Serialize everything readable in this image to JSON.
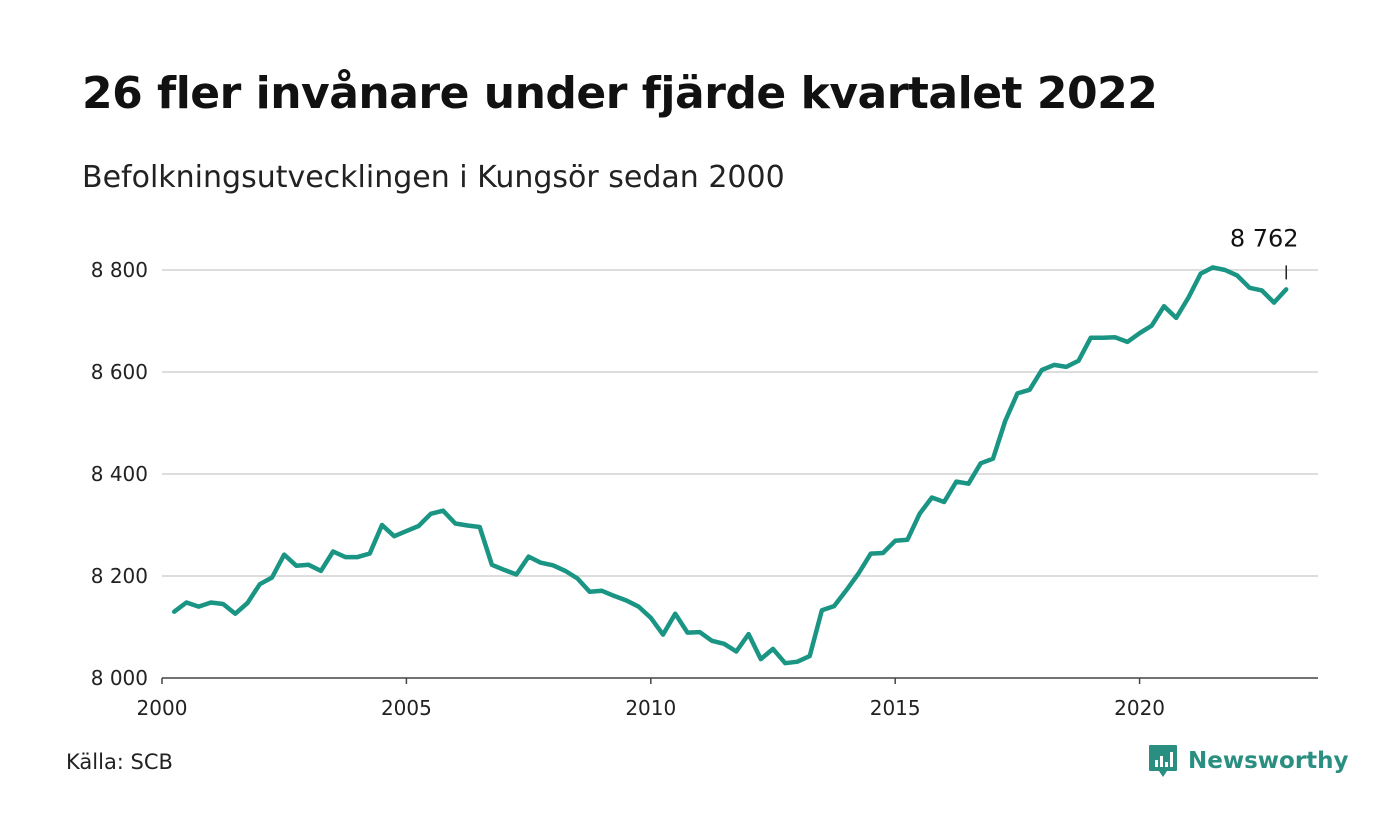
{
  "title": "26 fler invånare under fjärde kvartalet 2022",
  "subtitle": "Befolkningsutvecklingen i Kungsör sedan 2000",
  "source": "Källa: SCB",
  "brand": {
    "name": "Newsworthy",
    "icon": "newsworthy-logo-icon"
  },
  "colors": {
    "line": "#1a9584",
    "grid": "#dddddd",
    "axis": "#444444",
    "brand": "#2a8f80"
  },
  "chart_data": {
    "type": "line",
    "title": "26 fler invånare under fjärde kvartalet 2022",
    "subtitle": "Befolkningsutvecklingen i Kungsör sedan 2000",
    "xlabel": "",
    "ylabel": "",
    "xlim": [
      2000,
      2023.5
    ],
    "ylim": [
      8000,
      8800
    ],
    "x_ticks": [
      2000,
      2005,
      2010,
      2015,
      2020
    ],
    "x_tick_labels": [
      "2000",
      "2005",
      "2010",
      "2015",
      "2020"
    ],
    "y_ticks": [
      8000,
      8200,
      8400,
      8600,
      8800
    ],
    "y_tick_labels": [
      "8 000",
      "8 200",
      "8 400",
      "8 600",
      "8 800"
    ],
    "grid": true,
    "last_value_label": "8 762",
    "series": [
      {
        "x": [
          2000.25,
          2000.5,
          2000.75,
          2001.0,
          2001.25,
          2001.5,
          2001.75,
          2002.0,
          2002.25,
          2002.5,
          2002.75,
          2003.0,
          2003.25,
          2003.5,
          2003.75,
          2004.0,
          2004.25,
          2004.5,
          2004.75,
          2005.0,
          2005.25,
          2005.5,
          2005.75,
          2006.0,
          2006.25,
          2006.5,
          2006.75,
          2007.0,
          2007.25,
          2007.5,
          2007.75,
          2008.0,
          2008.25,
          2008.5,
          2008.75,
          2009.0,
          2009.25,
          2009.5,
          2009.75,
          2010.0,
          2010.25,
          2010.5,
          2010.75,
          2011.0,
          2011.25,
          2011.5,
          2011.75,
          2012.0,
          2012.25,
          2012.5,
          2012.75,
          2013.0,
          2013.25,
          2013.5,
          2013.75,
          2014.0,
          2014.25,
          2014.5,
          2014.75,
          2015.0,
          2015.25,
          2015.5,
          2015.75,
          2016.0,
          2016.25,
          2016.5,
          2016.75,
          2017.0,
          2017.25,
          2017.5,
          2017.75,
          2018.0,
          2018.25,
          2018.5,
          2018.75,
          2019.0,
          2019.25,
          2019.5,
          2019.75,
          2020.0,
          2020.25,
          2020.5,
          2020.75,
          2021.0,
          2021.25,
          2021.5,
          2021.75,
          2022.0,
          2022.25,
          2022.5,
          2022.75,
          2023.0
        ],
        "values": [
          8130,
          8148,
          8140,
          8148,
          8145,
          8126,
          8147,
          8184,
          8197,
          8242,
          8220,
          8222,
          8210,
          8248,
          8237,
          8237,
          8244,
          8300,
          8278,
          8288,
          8298,
          8322,
          8328,
          8303,
          8299,
          8296,
          8222,
          8212,
          8203,
          8238,
          8226,
          8221,
          8210,
          8195,
          8169,
          8171,
          8161,
          8152,
          8140,
          8118,
          8085,
          8126,
          8089,
          8090,
          8073,
          8067,
          8052,
          8086,
          8037,
          8057,
          8029,
          8032,
          8043,
          8133,
          8141,
          8172,
          8205,
          8244,
          8245,
          8269,
          8271,
          8322,
          8354,
          8345,
          8385,
          8381,
          8421,
          8430,
          8504,
          8558,
          8565,
          8604,
          8614,
          8610,
          8622,
          8667,
          8667,
          8668,
          8659,
          8676,
          8691,
          8729,
          8706,
          8746,
          8793,
          8805,
          8800,
          8789,
          8765,
          8760,
          8736,
          8762
        ]
      }
    ]
  }
}
